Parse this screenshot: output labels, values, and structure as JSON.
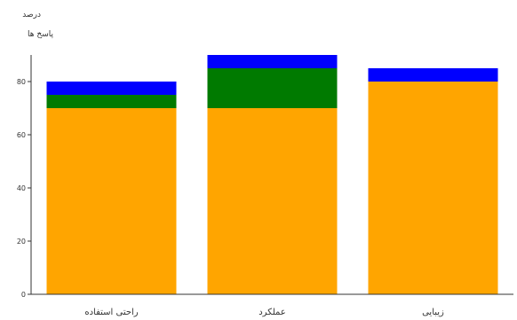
{
  "chart_data": {
    "type": "bar",
    "stacked": true,
    "title": "",
    "xlabel": "",
    "ylabel": [
      "درصد",
      "پاسخ ها"
    ],
    "categories": [
      "راحتی استفاده",
      "عملکرد",
      "زیبایی"
    ],
    "series": [
      {
        "color": "#ffa500",
        "values": [
          70,
          70,
          80
        ]
      },
      {
        "color": "#007a00",
        "values": [
          5,
          15,
          0
        ]
      },
      {
        "color": "#0000ff",
        "values": [
          5,
          5,
          5
        ]
      }
    ],
    "ylim": [
      0,
      90
    ],
    "yticks": [
      0,
      20,
      40,
      60,
      80
    ],
    "grid": false,
    "legend": "none"
  }
}
